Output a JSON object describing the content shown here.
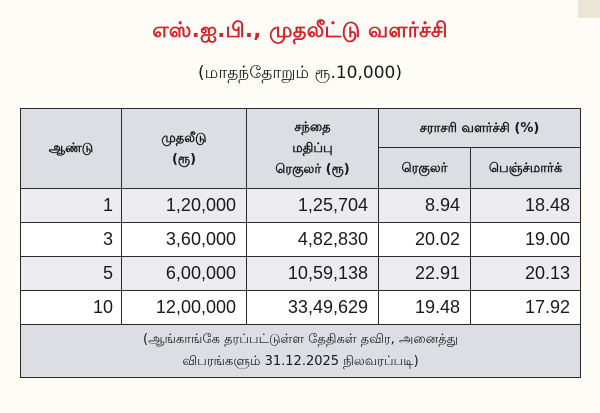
{
  "title": "எஸ்.ஐ.பி., முதலீட்டு வளர்ச்சி",
  "subtitle": "(மாதந்தோறும்   ரூ.10,000)",
  "table": {
    "headers": {
      "year": "ஆண்டு",
      "investment_line1": "முதலீடு",
      "investment_line2": "(ரூ)",
      "market_line1": "சந்தை",
      "market_line2": "மதிப்பு",
      "market_line3": "ரெகுலர் (ரூ)",
      "avg_growth": "சராசரி வளர்ச்சி (%)",
      "regular": "ரெகுலர்",
      "benchmark": "பெஞ்ச்மார்க்"
    },
    "rows": [
      {
        "year": "1",
        "investment": "1,20,000",
        "market_value": "1,25,704",
        "regular": "8.94",
        "benchmark": "18.48"
      },
      {
        "year": "3",
        "investment": "3,60,000",
        "market_value": "4,82,830",
        "regular": "20.02",
        "benchmark": "19.00"
      },
      {
        "year": "5",
        "investment": "6,00,000",
        "market_value": "10,59,138",
        "regular": "22.91",
        "benchmark": "20.13"
      },
      {
        "year": "10",
        "investment": "12,00,000",
        "market_value": "33,49,629",
        "regular": "19.48",
        "benchmark": "17.92"
      }
    ],
    "footnote_line1": "(ஆங்காங்கே தரப்பட்டுள்ள தேதிகள் தவிர, அனைத்து",
    "footnote_line2": "விபரங்களும் 31.12.2025 நிலவரப்படி)"
  }
}
